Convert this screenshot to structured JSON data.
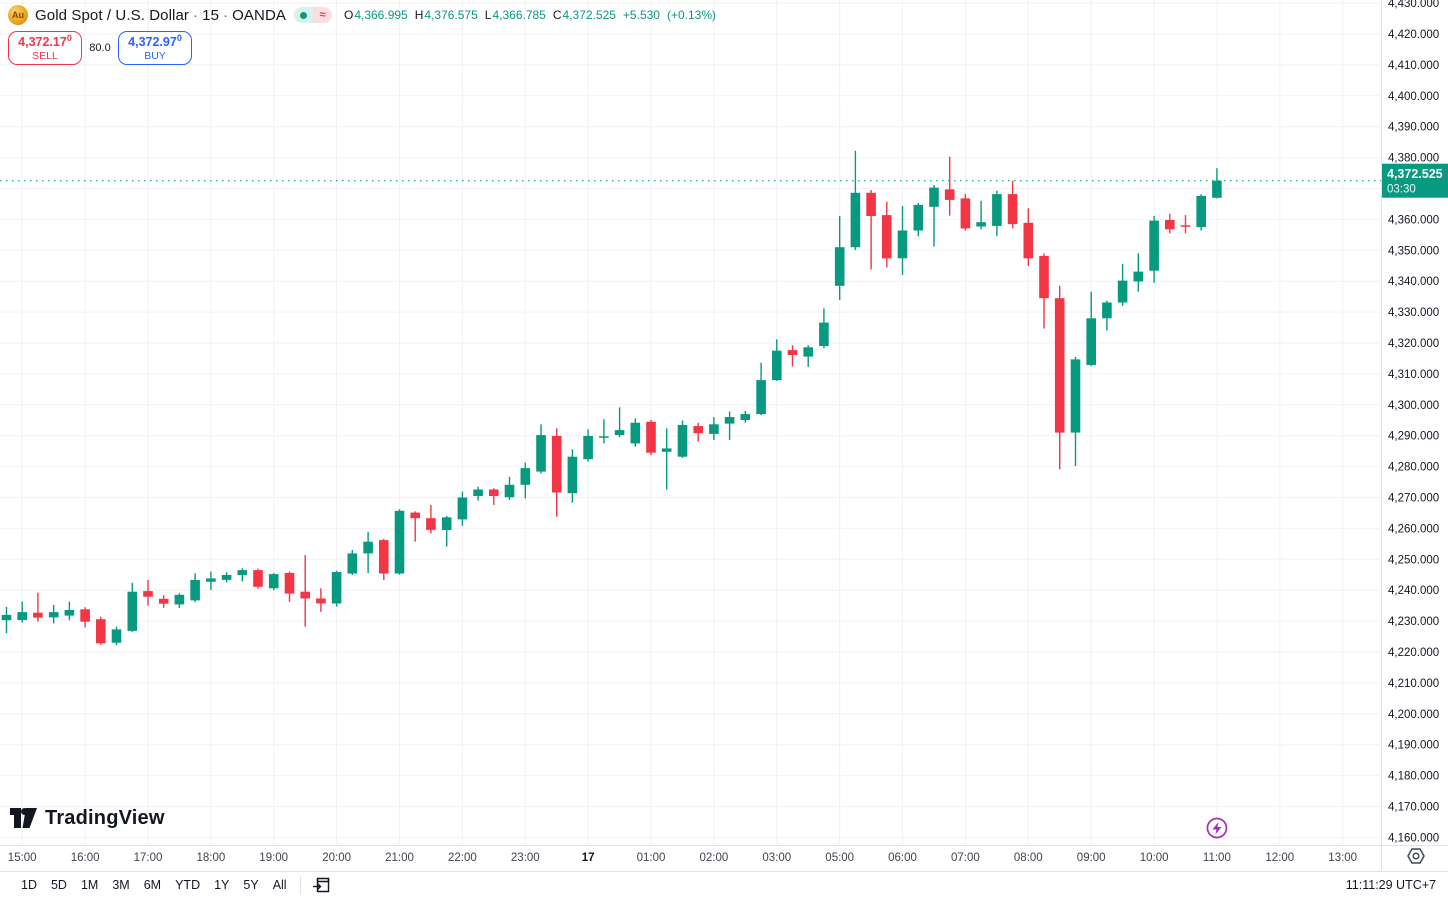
{
  "header": {
    "symbol_icon": "gold-ingots-icon",
    "symbol": "Gold Spot / U.S. Dollar",
    "separator": "·",
    "interval": "15",
    "exchange": "OANDA",
    "status": {
      "market_open_icon": "market-open-dot-icon",
      "delayed_icon": "approx-delayed-icon",
      "delayed_glyph": "≈"
    },
    "ohlc": {
      "o_label": "O",
      "o": "4,366.995",
      "h_label": "H",
      "h": "4,376.575",
      "l_label": "L",
      "l": "4,366.785",
      "c_label": "C",
      "c": "4,372.525",
      "change": "+5.530",
      "change_pct": "(+0.13%)"
    },
    "sell_button": {
      "price": "4,372.17",
      "sup": "0",
      "label": "SELL"
    },
    "spread": "80.0",
    "buy_button": {
      "price": "4,372.97",
      "sup": "0",
      "label": "BUY"
    }
  },
  "watermark": {
    "text": "TradingView",
    "logo": "tradingview-logo"
  },
  "price_axis": {
    "label_format": "x,xxx.000",
    "current_label": {
      "price": "4,372.525",
      "countdown": "03:30",
      "bg_color": "#089981"
    },
    "settings_icon": "hexagon-settings-icon"
  },
  "time_axis": {
    "labels": [
      {
        "text": "15:00",
        "i": 1
      },
      {
        "text": "16:00",
        "i": 5
      },
      {
        "text": "17:00",
        "i": 9
      },
      {
        "text": "18:00",
        "i": 13
      },
      {
        "text": "19:00",
        "i": 17
      },
      {
        "text": "20:00",
        "i": 21
      },
      {
        "text": "21:00",
        "i": 25
      },
      {
        "text": "22:00",
        "i": 29
      },
      {
        "text": "23:00",
        "i": 33
      },
      {
        "text": "17",
        "i": 37,
        "bold": true
      },
      {
        "text": "01:00",
        "i": 41
      },
      {
        "text": "02:00",
        "i": 45
      },
      {
        "text": "03:00",
        "i": 49
      },
      {
        "text": "05:00",
        "i": 53
      },
      {
        "text": "06:00",
        "i": 57
      },
      {
        "text": "07:00",
        "i": 61
      },
      {
        "text": "08:00",
        "i": 65
      },
      {
        "text": "09:00",
        "i": 69
      },
      {
        "text": "10:00",
        "i": 73
      },
      {
        "text": "11:00",
        "i": 77
      },
      {
        "text": "12:00",
        "i": 81
      },
      {
        "text": "13:00",
        "i": 85
      }
    ],
    "realtime_marker": {
      "icon": "lightning-bolt-icon",
      "i": 77,
      "color": "#a62bbd"
    }
  },
  "toolbar": {
    "ranges": [
      "1D",
      "5D",
      "1M",
      "3M",
      "6M",
      "YTD",
      "1Y",
      "5Y",
      "All"
    ],
    "goto_date_icon": "calendar-goto-date-icon",
    "clock": "11:11:29 UTC+7"
  },
  "chart_data": {
    "type": "candlestick",
    "title": "Gold Spot / U.S. Dollar, 15, OANDA",
    "interval_minutes": 15,
    "up_color": "#089981",
    "down_color": "#f23645",
    "grid_color": "#f0f2f5",
    "axis_range": {
      "min": 4160,
      "max": 4430,
      "step": 10
    },
    "last_price": 4372.525,
    "countdown": "03:30",
    "session_break": "no candles between 03:45 and 05:00",
    "candles": [
      {
        "t": "14:45",
        "o": 4230.3,
        "h": 4234.6,
        "l": 4226.1,
        "c": 4232.0
      },
      {
        "t": "15:00",
        "o": 4230.3,
        "h": 4236.3,
        "l": 4229.5,
        "c": 4232.9
      },
      {
        "t": "15:15",
        "o": 4232.7,
        "h": 4239.2,
        "l": 4229.8,
        "c": 4231.1
      },
      {
        "t": "15:30",
        "o": 4231.2,
        "h": 4235.2,
        "l": 4229.3,
        "c": 4232.9
      },
      {
        "t": "15:45",
        "o": 4231.8,
        "h": 4236.3,
        "l": 4230.3,
        "c": 4233.6
      },
      {
        "t": "16:00",
        "o": 4233.8,
        "h": 4234.5,
        "l": 4228.0,
        "c": 4229.8
      },
      {
        "t": "16:15",
        "o": 4230.6,
        "h": 4231.4,
        "l": 4222.3,
        "c": 4222.8
      },
      {
        "t": "16:30",
        "o": 4223.0,
        "h": 4228.2,
        "l": 4222.2,
        "c": 4227.3
      },
      {
        "t": "16:45",
        "o": 4226.8,
        "h": 4242.4,
        "l": 4226.5,
        "c": 4239.5
      },
      {
        "t": "17:00",
        "o": 4239.7,
        "h": 4243.3,
        "l": 4235.0,
        "c": 4237.9
      },
      {
        "t": "17:15",
        "o": 4237.2,
        "h": 4238.3,
        "l": 4234.3,
        "c": 4235.6
      },
      {
        "t": "17:30",
        "o": 4235.4,
        "h": 4239.0,
        "l": 4234.2,
        "c": 4238.5
      },
      {
        "t": "17:45",
        "o": 4236.7,
        "h": 4245.5,
        "l": 4236.1,
        "c": 4243.3
      },
      {
        "t": "18:00",
        "o": 4242.7,
        "h": 4246.0,
        "l": 4240.1,
        "c": 4243.8
      },
      {
        "t": "18:15",
        "o": 4243.3,
        "h": 4245.8,
        "l": 4242.5,
        "c": 4244.9
      },
      {
        "t": "18:30",
        "o": 4244.9,
        "h": 4247.1,
        "l": 4242.8,
        "c": 4246.5
      },
      {
        "t": "18:45",
        "o": 4246.5,
        "h": 4247.0,
        "l": 4240.5,
        "c": 4241.1
      },
      {
        "t": "19:00",
        "o": 4240.6,
        "h": 4245.5,
        "l": 4240.0,
        "c": 4245.2
      },
      {
        "t": "19:15",
        "o": 4245.6,
        "h": 4246.0,
        "l": 4236.2,
        "c": 4238.9
      },
      {
        "t": "19:30",
        "o": 4239.5,
        "h": 4251.4,
        "l": 4228.2,
        "c": 4237.3
      },
      {
        "t": "19:45",
        "o": 4237.3,
        "h": 4240.6,
        "l": 4233.0,
        "c": 4235.7
      },
      {
        "t": "20:00",
        "o": 4235.7,
        "h": 4246.3,
        "l": 4234.7,
        "c": 4245.9
      },
      {
        "t": "20:15",
        "o": 4245.4,
        "h": 4253.0,
        "l": 4244.9,
        "c": 4251.9
      },
      {
        "t": "20:30",
        "o": 4251.9,
        "h": 4258.9,
        "l": 4245.5,
        "c": 4255.7
      },
      {
        "t": "20:45",
        "o": 4256.2,
        "h": 4256.6,
        "l": 4243.3,
        "c": 4245.4
      },
      {
        "t": "21:00",
        "o": 4245.4,
        "h": 4266.2,
        "l": 4245.0,
        "c": 4265.7
      },
      {
        "t": "21:15",
        "o": 4265.1,
        "h": 4265.5,
        "l": 4255.7,
        "c": 4263.3
      },
      {
        "t": "21:30",
        "o": 4263.3,
        "h": 4267.6,
        "l": 4258.4,
        "c": 4259.5
      },
      {
        "t": "21:45",
        "o": 4259.5,
        "h": 4264.0,
        "l": 4254.1,
        "c": 4263.6
      },
      {
        "t": "22:00",
        "o": 4262.9,
        "h": 4271.9,
        "l": 4260.8,
        "c": 4270.0
      },
      {
        "t": "22:15",
        "o": 4270.5,
        "h": 4273.5,
        "l": 4269.0,
        "c": 4272.6
      },
      {
        "t": "22:30",
        "o": 4272.6,
        "h": 4273.0,
        "l": 4267.6,
        "c": 4270.5
      },
      {
        "t": "22:45",
        "o": 4270.1,
        "h": 4276.7,
        "l": 4269.2,
        "c": 4274.1
      },
      {
        "t": "23:00",
        "o": 4274.1,
        "h": 4281.3,
        "l": 4269.7,
        "c": 4279.5
      },
      {
        "t": "23:15",
        "o": 4278.4,
        "h": 4293.7,
        "l": 4277.8,
        "c": 4290.2
      },
      {
        "t": "23:30",
        "o": 4289.9,
        "h": 4292.4,
        "l": 4263.8,
        "c": 4271.6
      },
      {
        "t": "23:45",
        "o": 4271.4,
        "h": 4285.6,
        "l": 4268.3,
        "c": 4283.2
      },
      {
        "t": "00:00",
        "o": 4282.4,
        "h": 4292.1,
        "l": 4281.6,
        "c": 4289.9
      },
      {
        "t": "00:15",
        "o": 4289.3,
        "h": 4295.3,
        "l": 4287.5,
        "c": 4289.8
      },
      {
        "t": "00:30",
        "o": 4290.2,
        "h": 4299.2,
        "l": 4289.6,
        "c": 4291.8
      },
      {
        "t": "00:45",
        "o": 4287.5,
        "h": 4295.6,
        "l": 4286.4,
        "c": 4294.2
      },
      {
        "t": "01:00",
        "o": 4294.5,
        "h": 4295.1,
        "l": 4283.7,
        "c": 4284.5
      },
      {
        "t": "01:15",
        "o": 4284.8,
        "h": 4292.4,
        "l": 4272.6,
        "c": 4285.9
      },
      {
        "t": "01:30",
        "o": 4283.2,
        "h": 4294.9,
        "l": 4282.8,
        "c": 4293.5
      },
      {
        "t": "01:45",
        "o": 4293.1,
        "h": 4294.2,
        "l": 4288.1,
        "c": 4290.8
      },
      {
        "t": "02:00",
        "o": 4290.6,
        "h": 4296.0,
        "l": 4288.6,
        "c": 4293.7
      },
      {
        "t": "02:15",
        "o": 4293.9,
        "h": 4297.8,
        "l": 4288.6,
        "c": 4296.0
      },
      {
        "t": "02:30",
        "o": 4295.1,
        "h": 4298.0,
        "l": 4294.2,
        "c": 4297.0
      },
      {
        "t": "02:45",
        "o": 4297.0,
        "h": 4313.6,
        "l": 4296.7,
        "c": 4308.0
      },
      {
        "t": "03:00",
        "o": 4308.0,
        "h": 4321.2,
        "l": 4307.7,
        "c": 4317.5
      },
      {
        "t": "03:15",
        "o": 4317.7,
        "h": 4319.3,
        "l": 4312.4,
        "c": 4316.1
      },
      {
        "t": "03:30",
        "o": 4315.6,
        "h": 4319.3,
        "l": 4312.3,
        "c": 4318.6
      },
      {
        "t": "03:45",
        "o": 4319.0,
        "h": 4331.2,
        "l": 4318.3,
        "c": 4326.6
      },
      {
        "t": "05:00",
        "o": 4338.5,
        "h": 4361.1,
        "l": 4333.9,
        "c": 4351.0
      },
      {
        "t": "05:15",
        "o": 4351.0,
        "h": 4382.2,
        "l": 4350.1,
        "c": 4368.6
      },
      {
        "t": "05:30",
        "o": 4368.6,
        "h": 4369.5,
        "l": 4343.8,
        "c": 4361.1
      },
      {
        "t": "05:45",
        "o": 4361.4,
        "h": 4365.7,
        "l": 4344.5,
        "c": 4347.4
      },
      {
        "t": "06:00",
        "o": 4347.4,
        "h": 4364.3,
        "l": 4342.0,
        "c": 4356.4
      },
      {
        "t": "06:15",
        "o": 4356.4,
        "h": 4365.3,
        "l": 4354.5,
        "c": 4364.7
      },
      {
        "t": "06:30",
        "o": 4364.1,
        "h": 4371.1,
        "l": 4351.2,
        "c": 4370.3
      },
      {
        "t": "06:45",
        "o": 4369.7,
        "h": 4380.3,
        "l": 4361.2,
        "c": 4366.3
      },
      {
        "t": "07:00",
        "o": 4366.8,
        "h": 4368.2,
        "l": 4356.4,
        "c": 4357.1
      },
      {
        "t": "07:15",
        "o": 4357.7,
        "h": 4366.0,
        "l": 4356.8,
        "c": 4359.1
      },
      {
        "t": "07:30",
        "o": 4357.9,
        "h": 4369.3,
        "l": 4354.6,
        "c": 4368.2
      },
      {
        "t": "07:45",
        "o": 4368.2,
        "h": 4372.5,
        "l": 4357.1,
        "c": 4358.5
      },
      {
        "t": "08:00",
        "o": 4358.9,
        "h": 4363.6,
        "l": 4344.9,
        "c": 4347.4
      },
      {
        "t": "08:15",
        "o": 4348.2,
        "h": 4349.0,
        "l": 4324.7,
        "c": 4334.5
      },
      {
        "t": "08:30",
        "o": 4334.5,
        "h": 4338.5,
        "l": 4279.1,
        "c": 4291.0
      },
      {
        "t": "08:45",
        "o": 4291.0,
        "h": 4315.5,
        "l": 4280.2,
        "c": 4314.7
      },
      {
        "t": "09:00",
        "o": 4312.9,
        "h": 4336.6,
        "l": 4312.5,
        "c": 4328.0
      },
      {
        "t": "09:15",
        "o": 4328.0,
        "h": 4333.7,
        "l": 4324.0,
        "c": 4333.1
      },
      {
        "t": "09:30",
        "o": 4333.1,
        "h": 4345.6,
        "l": 4332.0,
        "c": 4340.2
      },
      {
        "t": "09:45",
        "o": 4339.9,
        "h": 4349.0,
        "l": 4336.6,
        "c": 4343.1
      },
      {
        "t": "10:00",
        "o": 4343.4,
        "h": 4361.1,
        "l": 4339.5,
        "c": 4359.6
      },
      {
        "t": "10:15",
        "o": 4359.8,
        "h": 4361.8,
        "l": 4355.5,
        "c": 4356.8
      },
      {
        "t": "10:30",
        "o": 4358.1,
        "h": 4361.4,
        "l": 4355.5,
        "c": 4357.6
      },
      {
        "t": "10:45",
        "o": 4357.5,
        "h": 4368.2,
        "l": 4356.4,
        "c": 4367.6
      },
      {
        "t": "11:00",
        "o": 4366.995,
        "h": 4376.575,
        "l": 4366.785,
        "c": 4372.525
      }
    ]
  }
}
